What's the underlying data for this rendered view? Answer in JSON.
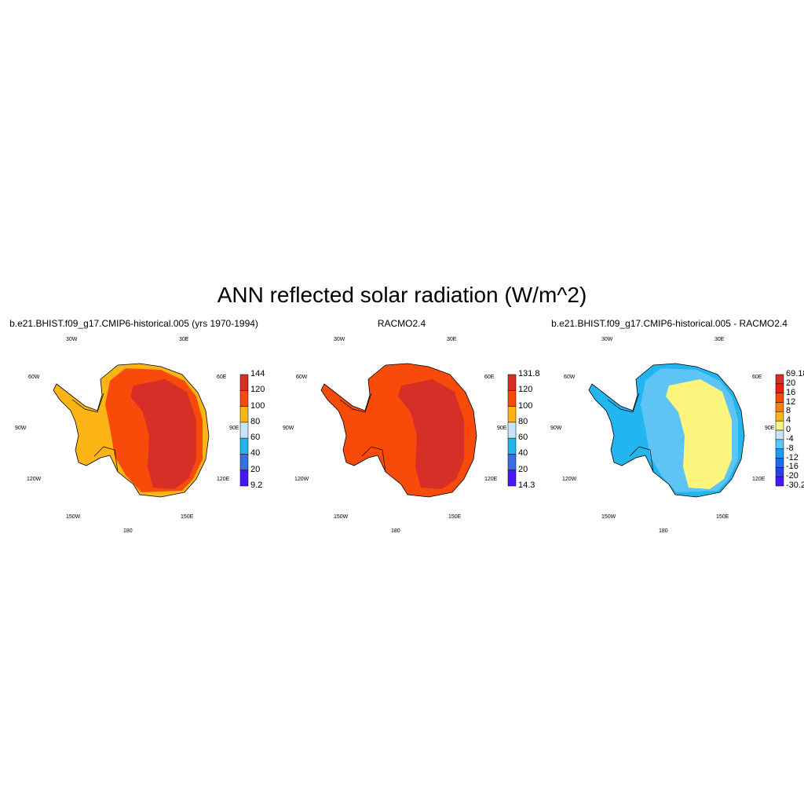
{
  "title": "ANN reflected solar radiation (W/m^2)",
  "panels": [
    {
      "title": "b.e21.BHIST.f09_g17.CMIP6-historical.005 (yrs 1970-1994)",
      "lon_labels": [
        "30W",
        "30E",
        "60W",
        "60E",
        "90W",
        "90E",
        "120W",
        "120E",
        "150W",
        "150E",
        "180"
      ],
      "colorbar": {
        "labels": [
          "144",
          "120",
          "100",
          "80",
          "60",
          "40",
          "20",
          "9.2"
        ],
        "colors": [
          "#d62f27",
          "#f84b0a",
          "#fdb515",
          "#c6e3f7",
          "#22b5f0",
          "#386de3",
          "#4817fb"
        ]
      },
      "map_colors": {
        "outer": "#fdb515",
        "mid": "#f84b0a",
        "inner": "#d62f27"
      }
    },
    {
      "title": "RACMO2.4",
      "lon_labels": [
        "30W",
        "30E",
        "60W",
        "60E",
        "90W",
        "90E",
        "120W",
        "120E",
        "150W",
        "150E",
        "180"
      ],
      "colorbar": {
        "labels": [
          "131.8",
          "120",
          "100",
          "80",
          "60",
          "40",
          "20",
          "14.3"
        ],
        "colors": [
          "#d62f27",
          "#f84b0a",
          "#fdb515",
          "#c6e3f7",
          "#22b5f0",
          "#386de3",
          "#4817fb"
        ]
      },
      "map_colors": {
        "outer": "#f84b0a",
        "mid": "#f84b0a",
        "inner": "#d62f27"
      }
    },
    {
      "title": "b.e21.BHIST.f09_g17.CMIP6-historical.005 - RACMO2.4",
      "lon_labels": [
        "30W",
        "30E",
        "60W",
        "60E",
        "90W",
        "90E",
        "120W",
        "120E",
        "150W",
        "150E",
        "180"
      ],
      "colorbar": {
        "labels": [
          "69.18",
          "20",
          "16",
          "12",
          "8",
          "4",
          "0",
          "-4",
          "-8",
          "-12",
          "-16",
          "-20",
          "-30.2"
        ],
        "colors": [
          "#d62f27",
          "#f01b0b",
          "#f84b0a",
          "#f77f12",
          "#fdb515",
          "#fdf57d",
          "#c6e3f7",
          "#5ec4f5",
          "#1f9bed",
          "#1c6de8",
          "#2d40e0",
          "#4817fb"
        ]
      },
      "map_colors": {
        "outer": "#22b5f0",
        "mid": "#5ec4f5",
        "inner": "#fdf57d"
      }
    }
  ]
}
